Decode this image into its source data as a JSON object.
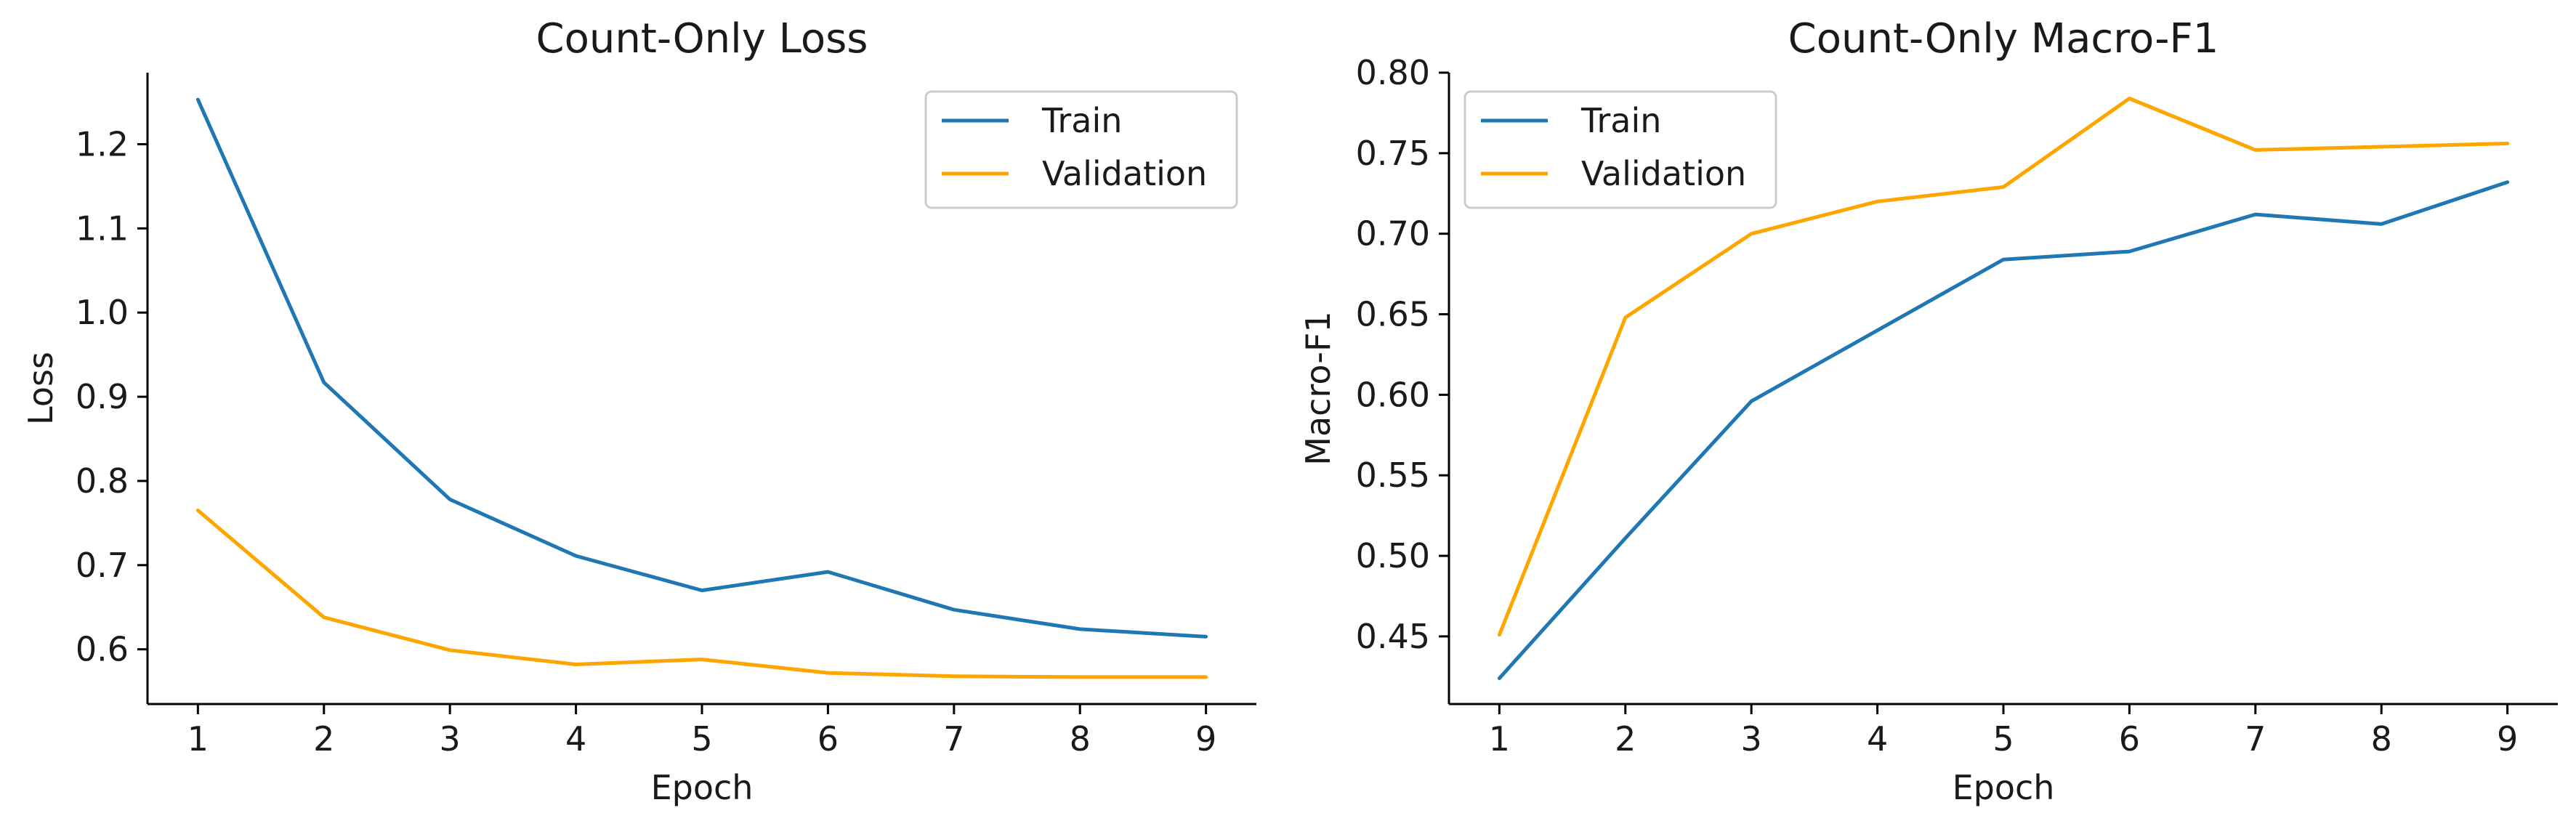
{
  "chart_data": [
    {
      "type": "line",
      "title": "Count-Only Loss",
      "xlabel": "Epoch",
      "ylabel": "Loss",
      "x": [
        1,
        2,
        3,
        4,
        5,
        6,
        7,
        8,
        9
      ],
      "xticks": [
        "1",
        "2",
        "3",
        "4",
        "5",
        "6",
        "7",
        "8",
        "9"
      ],
      "xlim": [
        0.6,
        9.4
      ],
      "ylim": [
        0.535,
        1.285
      ],
      "yticks": [
        0.6,
        0.7,
        0.8,
        0.9,
        1.0,
        1.1,
        1.2
      ],
      "ytick_labels": [
        "0.6",
        "0.7",
        "0.8",
        "0.9",
        "1.0",
        "1.1",
        "1.2"
      ],
      "grid": false,
      "legend_position": "top-right",
      "series": [
        {
          "name": "Train",
          "color": "#1f77b4",
          "values": [
            1.253,
            0.917,
            0.778,
            0.711,
            0.67,
            0.692,
            0.647,
            0.624,
            0.615
          ]
        },
        {
          "name": "Validation",
          "color": "#ffa500",
          "values": [
            0.765,
            0.638,
            0.599,
            0.582,
            0.588,
            0.572,
            0.568,
            0.567,
            0.567
          ]
        }
      ]
    },
    {
      "type": "line",
      "title": "Count-Only Macro-F1",
      "xlabel": "Epoch",
      "ylabel": "Macro-F1",
      "x": [
        1,
        2,
        3,
        4,
        5,
        6,
        7,
        8,
        9
      ],
      "xticks": [
        "1",
        "2",
        "3",
        "4",
        "5",
        "6",
        "7",
        "8",
        "9"
      ],
      "xlim": [
        0.6,
        9.4
      ],
      "ylim": [
        0.408,
        0.8
      ],
      "yticks": [
        0.45,
        0.5,
        0.55,
        0.6,
        0.65,
        0.7,
        0.75,
        0.8
      ],
      "ytick_labels": [
        "0.45",
        "0.50",
        "0.55",
        "0.60",
        "0.65",
        "0.70",
        "0.75",
        "0.80"
      ],
      "grid": false,
      "legend_position": "top-left",
      "series": [
        {
          "name": "Train",
          "color": "#1f77b4",
          "values": [
            0.424,
            0.511,
            0.596,
            0.64,
            0.684,
            0.689,
            0.712,
            0.706,
            0.732
          ]
        },
        {
          "name": "Validation",
          "color": "#ffa500",
          "values": [
            0.451,
            0.648,
            0.7,
            0.72,
            0.729,
            0.784,
            0.752,
            0.754,
            0.756
          ]
        }
      ]
    }
  ]
}
